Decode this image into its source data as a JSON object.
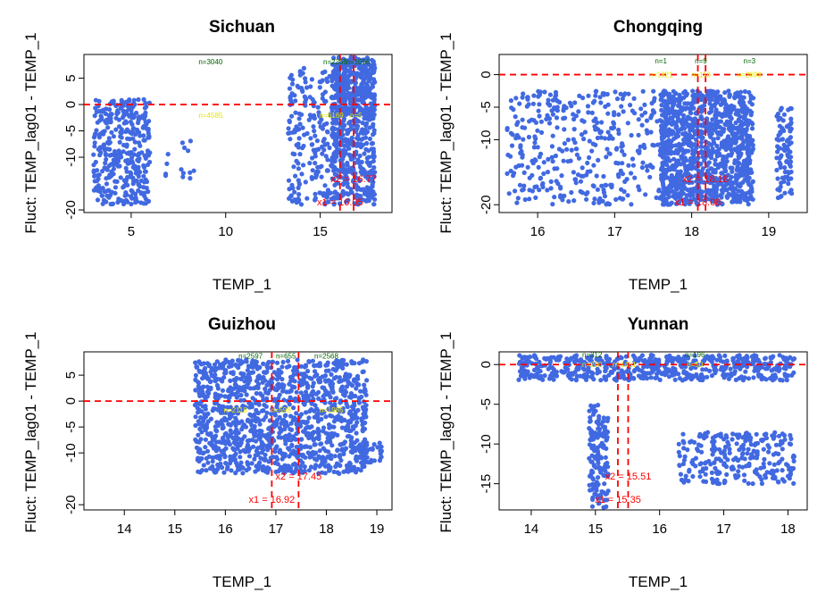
{
  "figure": {
    "colors": {
      "points": "#4169e1",
      "refline": "#ff0000",
      "count_green": "#006400",
      "count_yellow": "#e5e500"
    }
  },
  "chart_data": [
    {
      "type": "scatter",
      "title": "Sichuan",
      "xlabel": "TEMP_1",
      "ylabel": "Fluct: TEMP_lag01 - TEMP_1",
      "xlim": [
        2.5,
        18.8
      ],
      "ylim": [
        -20.5,
        9.5
      ],
      "xticks": [
        5,
        10,
        15
      ],
      "yticks": [
        -20,
        -10,
        -5,
        0,
        5
      ],
      "hline": 0,
      "vlines": [
        16.05,
        16.77
      ],
      "breakpoint_labels": [
        "x1 = 16.05",
        "x2 = 16.77"
      ],
      "count_labels": [
        {
          "text": "n=3040",
          "x": 9.2,
          "y": 7.6,
          "color": "green"
        },
        {
          "text": "n=2355",
          "x": 15.8,
          "y": 7.6,
          "color": "green"
        },
        {
          "text": "n=1056",
          "x": 17.0,
          "y": 7.6,
          "color": "green"
        },
        {
          "text": "n=4585",
          "x": 9.2,
          "y": -2.5,
          "color": "yellow"
        },
        {
          "text": "n=6169",
          "x": 15.6,
          "y": -2.5,
          "color": "yellow"
        },
        {
          "text": "n=5",
          "x": 16.9,
          "y": -2.5,
          "color": "yellow"
        }
      ],
      "clusters": [
        {
          "x": [
            3.0,
            6.0
          ],
          "y": [
            -19,
            1
          ],
          "n": 380
        },
        {
          "x": 7.0,
          "y": -16,
          "n": 0,
          "x_range": [
            6.8,
            8.6
          ],
          "y_range": [
            -14,
            -6
          ],
          "count": 14
        },
        {
          "x_range": [
            13.3,
            16.4
          ],
          "y_range": [
            -19,
            7
          ],
          "count": 260
        },
        {
          "x_range": [
            15.6,
            17.9
          ],
          "y_range": [
            -2,
            9
          ],
          "count": 380
        },
        {
          "x_range": [
            15.6,
            17.9
          ],
          "y_range": [
            -19,
            -1
          ],
          "count": 320
        }
      ]
    },
    {
      "type": "scatter",
      "title": "Chongqing",
      "xlabel": "TEMP_1",
      "ylabel": "Fluct: TEMP_lag01 - TEMP_1",
      "xlim": [
        15.5,
        19.5
      ],
      "ylim": [
        -21.2,
        3.1
      ],
      "xticks": [
        16,
        17,
        18,
        19
      ],
      "yticks": [
        -20,
        -10,
        -5,
        0
      ],
      "hline": 0,
      "vlines": [
        18.08,
        18.18
      ],
      "breakpoint_labels": [
        "x1 = 18.08",
        "x2 = 18.18"
      ],
      "count_labels": [
        {
          "text": "n=1",
          "x": 17.6,
          "y": 1.7,
          "color": "green"
        },
        {
          "text": "n=9",
          "x": 18.12,
          "y": 1.7,
          "color": "green"
        },
        {
          "text": "n=3",
          "x": 18.75,
          "y": 1.7,
          "color": "green"
        },
        {
          "text": "n=1821",
          "x": 17.6,
          "y": -0.4,
          "color": "yellow"
        },
        {
          "text": "n=116",
          "x": 18.12,
          "y": -0.4,
          "color": "yellow"
        },
        {
          "text": "n=2693",
          "x": 18.75,
          "y": -0.4,
          "color": "yellow"
        }
      ],
      "clusters": [
        {
          "x_range": [
            15.6,
            17.8
          ],
          "y_range": [
            -20,
            -2.5
          ],
          "count": 420
        },
        {
          "x_range": [
            17.6,
            18.8
          ],
          "y_range": [
            -20,
            -2.5
          ],
          "count": 1100
        },
        {
          "x_range": [
            19.1,
            19.3
          ],
          "y_range": [
            -19,
            -5
          ],
          "count": 90
        }
      ]
    },
    {
      "type": "scatter",
      "title": "Guizhou",
      "xlabel": "TEMP_1",
      "ylabel": "Fluct: TEMP_lag01 - TEMP_1",
      "xlim": [
        13.2,
        19.3
      ],
      "ylim": [
        -21.0,
        9.5
      ],
      "xticks": [
        14,
        15,
        16,
        17,
        18,
        19
      ],
      "yticks": [
        -20,
        -10,
        -5,
        0,
        5
      ],
      "hline": 0,
      "vlines": [
        16.92,
        17.45
      ],
      "breakpoint_labels": [
        "x1 = 16.92",
        "x2 = 17.45"
      ],
      "count_labels": [
        {
          "text": "n=2597",
          "x": 16.5,
          "y": 8.2,
          "color": "green"
        },
        {
          "text": "n=655",
          "x": 17.2,
          "y": 8.2,
          "color": "green"
        },
        {
          "text": "n=2568",
          "x": 18.0,
          "y": 8.2,
          "color": "green"
        },
        {
          "text": "n=2118",
          "x": 16.2,
          "y": -2.2,
          "color": "yellow"
        },
        {
          "text": "n=598",
          "x": 17.1,
          "y": -2.2,
          "color": "yellow"
        },
        {
          "text": "n=1985",
          "x": 18.1,
          "y": -2.2,
          "color": "yellow"
        }
      ],
      "clusters": [
        {
          "x_range": [
            15.4,
            18.8
          ],
          "y_range": [
            -14,
            8
          ],
          "count": 1300
        },
        {
          "x_range": [
            18.6,
            19.1
          ],
          "y_range": [
            -12,
            -8
          ],
          "count": 40
        }
      ]
    },
    {
      "type": "scatter",
      "title": "Yunnan",
      "xlabel": "TEMP_1",
      "ylabel": "Fluct: TEMP_lag01 - TEMP_1",
      "xlim": [
        13.5,
        18.3
      ],
      "ylim": [
        -18.3,
        1.6
      ],
      "xticks": [
        14,
        15,
        16,
        17,
        18
      ],
      "yticks": [
        -15,
        -10,
        -5,
        0
      ],
      "hline": 0,
      "vlines": [
        15.35,
        15.51
      ],
      "breakpoint_labels": [
        "x1 = 15.35",
        "x2 = 15.51"
      ],
      "count_labels": [
        {
          "text": "n=312",
          "x": 14.95,
          "y": 0.9,
          "color": "green"
        },
        {
          "text": "n=196",
          "x": 16.55,
          "y": 0.9,
          "color": "green"
        },
        {
          "text": "n=260",
          "x": 14.95,
          "y": -0.3,
          "color": "yellow"
        },
        {
          "text": "n=1451",
          "x": 15.45,
          "y": -0.3,
          "color": "yellow"
        },
        {
          "text": "n=50",
          "x": 16.55,
          "y": -0.3,
          "color": "yellow"
        }
      ],
      "clusters": [
        {
          "x_range": [
            13.8,
            18.1
          ],
          "y_range": [
            -2,
            1.2
          ],
          "count": 550
        },
        {
          "x_range": [
            14.9,
            15.2
          ],
          "y_range": [
            -18,
            -5
          ],
          "count": 160
        },
        {
          "x_range": [
            16.3,
            18.1
          ],
          "y_range": [
            -15,
            -8.5
          ],
          "count": 260
        }
      ]
    }
  ]
}
